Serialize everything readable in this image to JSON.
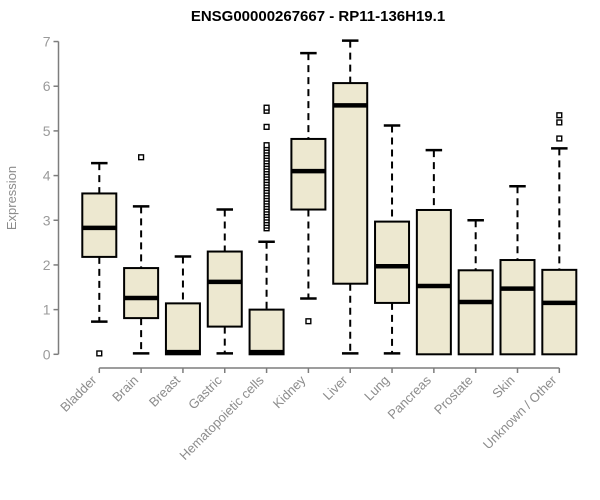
{
  "page": {
    "background": "#ffffff"
  },
  "chart_data": {
    "type": "boxplot",
    "title": "ENSG00000267667 - RP11-136H19.1",
    "ylabel": "Expression",
    "xlabel": "",
    "ylim": [
      0,
      7
    ],
    "yticks": [
      0,
      1,
      2,
      3,
      4,
      5,
      6,
      7
    ],
    "grid": "off",
    "legend": "none",
    "colors": {
      "box_fill": "#EDE8D0",
      "box_border": "#000000",
      "median": "#000000",
      "whisker": "#000000",
      "axis": "#7d7d7d",
      "tick_label": "#9a9a9a",
      "category_label": "#8c8c8c",
      "title": "#000000",
      "outlier_fill": "#ffffff"
    },
    "boxes": [
      {
        "label": "Bladder",
        "q1": 2.18,
        "median": 2.83,
        "q3": 3.6,
        "whisker_low": 0.73,
        "whisker_high": 4.28,
        "outliers": [
          0.02
        ]
      },
      {
        "label": "Brain",
        "q1": 0.81,
        "median": 1.26,
        "q3": 1.93,
        "whisker_low": 0.02,
        "whisker_high": 3.31,
        "outliers": [
          4.41
        ]
      },
      {
        "label": "Breast",
        "q1": 0.0,
        "median": 0.05,
        "q3": 1.14,
        "whisker_low": 0.0,
        "whisker_high": 2.19,
        "outliers": []
      },
      {
        "label": "Gastric",
        "q1": 0.62,
        "median": 1.62,
        "q3": 2.3,
        "whisker_low": 0.02,
        "whisker_high": 3.24,
        "outliers": []
      },
      {
        "label": "Hematopoietic cells",
        "q1": 0.0,
        "median": 0.05,
        "q3": 1.0,
        "whisker_low": 0.0,
        "whisker_high": 2.52,
        "outliers": [
          2.82,
          2.88,
          2.94,
          3.0,
          3.06,
          3.12,
          3.18,
          3.24,
          3.3,
          3.36,
          3.42,
          3.48,
          3.54,
          3.6,
          3.66,
          3.72,
          3.78,
          3.84,
          3.9,
          3.96,
          4.02,
          4.08,
          4.14,
          4.2,
          4.26,
          4.32,
          4.38,
          4.44,
          4.5,
          4.56,
          4.62,
          4.68,
          5.09,
          5.45,
          5.52
        ]
      },
      {
        "label": "Kidney",
        "q1": 3.24,
        "median": 4.1,
        "q3": 4.82,
        "whisker_low": 1.25,
        "whisker_high": 6.74,
        "outliers": [
          0.74
        ]
      },
      {
        "label": "Liver",
        "q1": 1.58,
        "median": 5.57,
        "q3": 6.07,
        "whisker_low": 0.02,
        "whisker_high": 7.02,
        "outliers": []
      },
      {
        "label": "Lung",
        "q1": 1.15,
        "median": 1.97,
        "q3": 2.97,
        "whisker_low": 0.02,
        "whisker_high": 5.12,
        "outliers": []
      },
      {
        "label": "Pancreas",
        "q1": 0.0,
        "median": 1.53,
        "q3": 3.23,
        "whisker_low": 0.0,
        "whisker_high": 4.57,
        "outliers": []
      },
      {
        "label": "Prostate",
        "q1": 0.0,
        "median": 1.17,
        "q3": 1.88,
        "whisker_low": 0.0,
        "whisker_high": 3.0,
        "outliers": []
      },
      {
        "label": "Skin",
        "q1": 0.0,
        "median": 1.47,
        "q3": 2.11,
        "whisker_low": 0.0,
        "whisker_high": 3.76,
        "outliers": []
      },
      {
        "label": "Unknown / Other",
        "q1": 0.0,
        "median": 1.15,
        "q3": 1.89,
        "whisker_low": 0.0,
        "whisker_high": 4.61,
        "outliers": [
          4.83,
          5.19,
          5.35
        ]
      }
    ]
  }
}
